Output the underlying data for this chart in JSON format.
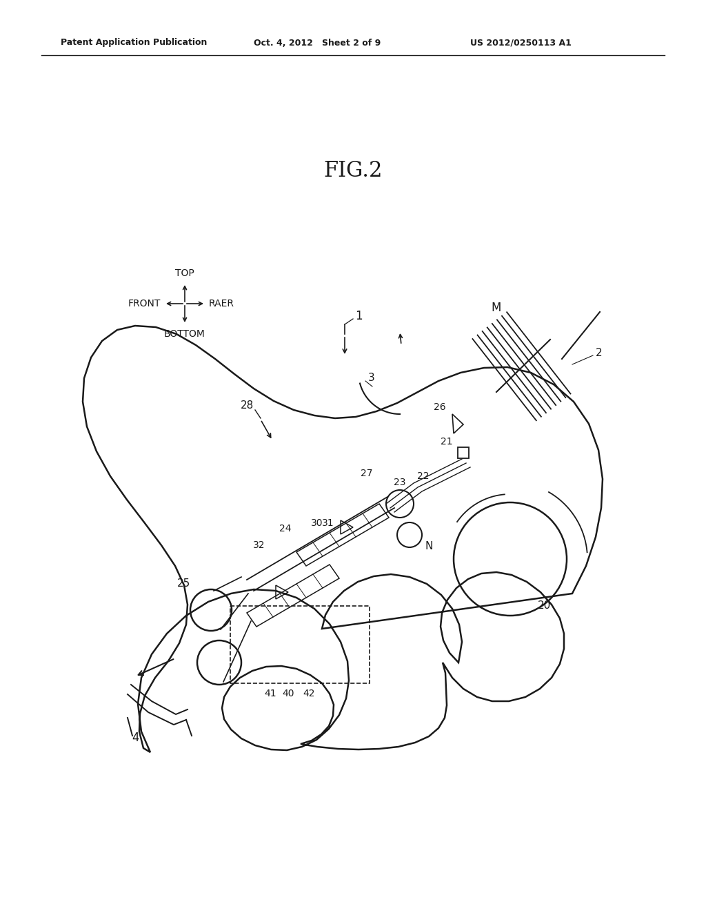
{
  "bg_color": "#ffffff",
  "line_color": "#1a1a1a",
  "header_left": "Patent Application Publication",
  "header_center": "Oct. 4, 2012   Sheet 2 of 9",
  "header_right": "US 2012/0250113 A1",
  "fig_title": "FIG.2"
}
